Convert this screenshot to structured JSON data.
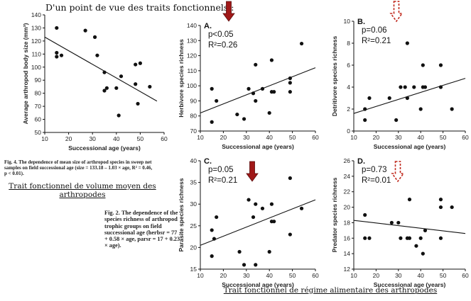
{
  "heading": "D'un point de vue des traits fonctionnels :",
  "fig4_caption": "Fig. 4. The dependence of mean size of arthropod species in sweep net samples on field successional age (size = 133.18 – 1.03 × age, R² = 0.46, p < 0.01).",
  "fig2_caption": "Fig. 2. The dependence of the species richness of arthropod trophic groups on field successional age (herbsr = 77 + 0.58 × age, parsr = 17 + 0.23 × age).",
  "trait_size": "Trait fonctionnel de volume moyen des arthropodes",
  "trait_diet": "Trait fonctionnel de régime alimentaire des arthropodes",
  "colors": {
    "solid_arrow": "#a01818",
    "dashed_arrow": "#c0281c",
    "ink": "#111111"
  },
  "chart_data": [
    {
      "id": "size",
      "type": "scatter",
      "panel": "",
      "xlabel": "Successional age (years)",
      "ylabel": "Average arthropod body size (mm³)",
      "xlim": [
        10,
        60
      ],
      "ylim": [
        50,
        140
      ],
      "xticks": [
        10,
        20,
        30,
        40,
        50,
        60
      ],
      "yticks": [
        50,
        60,
        70,
        80,
        90,
        100,
        110,
        120,
        130,
        140
      ],
      "points": [
        [
          15,
          130
        ],
        [
          15,
          111
        ],
        [
          15,
          108
        ],
        [
          17,
          109
        ],
        [
          27,
          128
        ],
        [
          31,
          123
        ],
        [
          32,
          109
        ],
        [
          35,
          96
        ],
        [
          35,
          82
        ],
        [
          36,
          84
        ],
        [
          40,
          84
        ],
        [
          41,
          63
        ],
        [
          42,
          93
        ],
        [
          48,
          87
        ],
        [
          48,
          102
        ],
        [
          49,
          72
        ],
        [
          50,
          103
        ],
        [
          54,
          85
        ]
      ],
      "fit": [
        [
          10,
          123
        ],
        [
          57,
          74
        ]
      ],
      "p": "",
      "r2": "",
      "arrow": "none"
    },
    {
      "id": "herbivore",
      "type": "scatter",
      "panel": "A.",
      "xlabel": "Successional age (years)",
      "ylabel": "Herbivore species richness",
      "xlim": [
        10,
        60
      ],
      "ylim": [
        70,
        140
      ],
      "xticks": [
        10,
        20,
        30,
        40,
        50,
        60
      ],
      "yticks": [
        70,
        80,
        90,
        100,
        110,
        120,
        130,
        140
      ],
      "points": [
        [
          15,
          76
        ],
        [
          15,
          98
        ],
        [
          17,
          90
        ],
        [
          26,
          81
        ],
        [
          29,
          78
        ],
        [
          31,
          98
        ],
        [
          33,
          95
        ],
        [
          34,
          90
        ],
        [
          34,
          114
        ],
        [
          37,
          98
        ],
        [
          40,
          82
        ],
        [
          41,
          96
        ],
        [
          41,
          117
        ],
        [
          42,
          96
        ],
        [
          49,
          96
        ],
        [
          49,
          102
        ],
        [
          49,
          105
        ],
        [
          54,
          128
        ]
      ],
      "fit": [
        [
          10,
          82
        ],
        [
          60,
          112
        ]
      ],
      "p": "p<0.05",
      "r2": "R²=0.26",
      "arrow": "solid"
    },
    {
      "id": "detritivore",
      "type": "scatter",
      "panel": "B.",
      "xlabel": "Successional age (years)",
      "ylabel": "Detritivore species richness",
      "xlim": [
        10,
        60
      ],
      "ylim": [
        0,
        10
      ],
      "xticks": [
        10,
        20,
        30,
        40,
        50,
        60
      ],
      "yticks": [
        0,
        2,
        4,
        6,
        8,
        10
      ],
      "points": [
        [
          15,
          1
        ],
        [
          15,
          2
        ],
        [
          17,
          3
        ],
        [
          26,
          3
        ],
        [
          29,
          1
        ],
        [
          31,
          4
        ],
        [
          33,
          4
        ],
        [
          34,
          3
        ],
        [
          34,
          8
        ],
        [
          37,
          4
        ],
        [
          40,
          2
        ],
        [
          41,
          4
        ],
        [
          41,
          6
        ],
        [
          42,
          4
        ],
        [
          49,
          4
        ],
        [
          49,
          6
        ],
        [
          54,
          2
        ]
      ],
      "fit": [
        [
          10,
          1.6
        ],
        [
          60,
          4.8
        ]
      ],
      "p": "p=0.06",
      "r2": "R²=0.21",
      "arrow": "dashed"
    },
    {
      "id": "parasite",
      "type": "scatter",
      "panel": "C.",
      "xlabel": "Successional age (years)",
      "ylabel": "Parasite species richness",
      "xlim": [
        10,
        60
      ],
      "ylim": [
        15,
        40
      ],
      "xticks": [
        10,
        20,
        30,
        40,
        50,
        60
      ],
      "yticks": [
        15,
        20,
        25,
        30,
        35,
        40
      ],
      "points": [
        [
          15,
          18
        ],
        [
          15,
          24
        ],
        [
          16,
          22
        ],
        [
          17,
          27
        ],
        [
          27,
          19
        ],
        [
          29,
          16
        ],
        [
          31,
          31
        ],
        [
          33,
          27
        ],
        [
          34,
          16
        ],
        [
          34,
          30
        ],
        [
          37,
          29
        ],
        [
          40,
          19
        ],
        [
          41,
          26
        ],
        [
          41,
          30
        ],
        [
          42,
          26
        ],
        [
          49,
          23
        ],
        [
          49,
          36
        ],
        [
          54,
          29
        ]
      ],
      "fit": [
        [
          10,
          20.5
        ],
        [
          60,
          31
        ]
      ],
      "p": "p=0.05",
      "r2": "R²=0.21",
      "arrow": "solid"
    },
    {
      "id": "predator",
      "type": "scatter",
      "panel": "D.",
      "xlabel": "Successional age (years)",
      "ylabel": "Predator species richness",
      "xlim": [
        10,
        60
      ],
      "ylim": [
        12,
        26
      ],
      "xticks": [
        10,
        20,
        30,
        40,
        50,
        60
      ],
      "yticks": [
        12,
        14,
        16,
        18,
        20,
        22,
        24,
        26
      ],
      "points": [
        [
          15,
          16
        ],
        [
          15,
          19
        ],
        [
          17,
          16
        ],
        [
          27,
          18
        ],
        [
          30,
          18
        ],
        [
          31,
          16
        ],
        [
          34,
          16
        ],
        [
          35,
          16
        ],
        [
          35,
          21
        ],
        [
          38,
          15
        ],
        [
          40,
          16
        ],
        [
          41,
          14
        ],
        [
          42,
          17
        ],
        [
          49,
          16
        ],
        [
          49,
          20
        ],
        [
          49,
          21
        ],
        [
          54,
          20
        ]
      ],
      "fit": [
        [
          10,
          18.3
        ],
        [
          60,
          16.6
        ]
      ],
      "p": "p=0.73",
      "r2": "R²=0.01",
      "arrow": "dashed"
    }
  ]
}
